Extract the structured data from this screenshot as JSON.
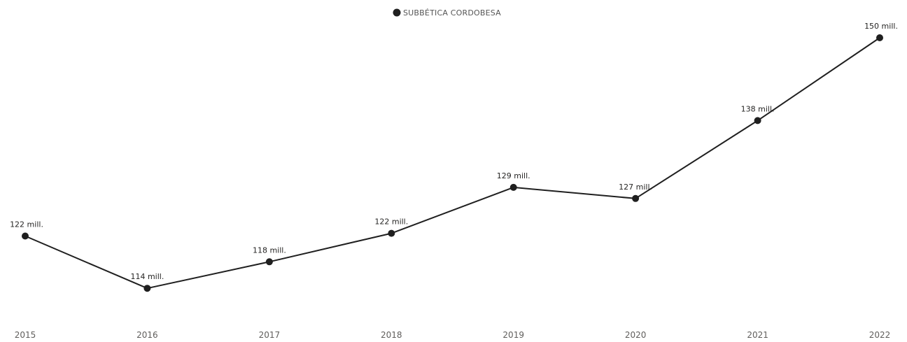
{
  "chart_data": {
    "type": "line",
    "title": "",
    "xlabel": "",
    "ylabel": "",
    "legend": {
      "placement": "top-center",
      "entries": [
        "SUBBÉTICA CORDOBESA"
      ]
    },
    "categories": [
      "2015",
      "2016",
      "2017",
      "2018",
      "2019",
      "2020",
      "2021",
      "2022"
    ],
    "series": [
      {
        "name": "SUBBÉTICA CORDOBESA",
        "color": "#1f1f1f",
        "values": [
          121.5,
          114.0,
          117.8,
          121.9,
          128.5,
          126.9,
          138.1,
          150.0
        ],
        "labels": [
          "122 mill.",
          "114 mill.",
          "118 mill.",
          "122 mill.",
          "129 mill.",
          "127 mill.",
          "138 mill.",
          "150 mill."
        ]
      }
    ],
    "ylim": [
      111,
      150.5
    ],
    "grid": false,
    "y_axis_visible": false
  }
}
